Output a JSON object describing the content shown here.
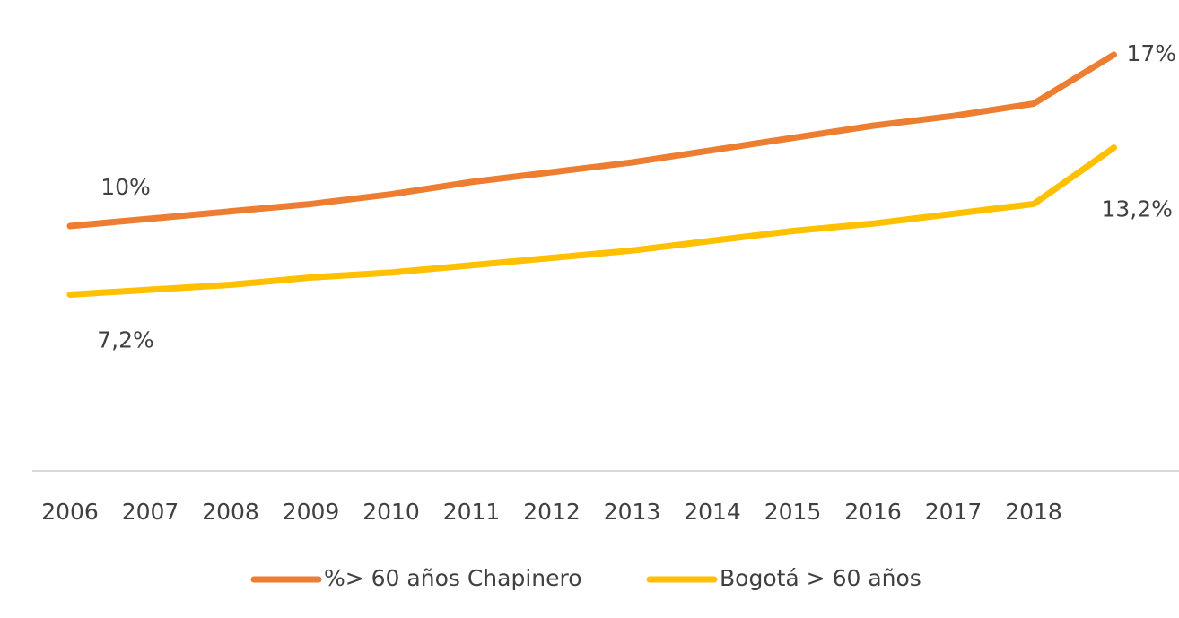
{
  "chart_data": {
    "type": "line",
    "categories": [
      "2006",
      "2007",
      "2008",
      "2009",
      "2010",
      "2011",
      "2012",
      "2013",
      "2014",
      "2015",
      "2016",
      "2017",
      "2018",
      null
    ],
    "series": [
      {
        "name": "%> 60 años Chapinero",
        "color": "#ed7d31",
        "values": [
          10,
          10.3,
          10.6,
          10.9,
          11.3,
          11.8,
          12.2,
          12.6,
          13.1,
          13.6,
          14.1,
          14.5,
          15.0,
          17
        ],
        "value_labels": [
          "10%",
          null,
          null,
          null,
          null,
          null,
          null,
          null,
          null,
          null,
          null,
          null,
          null,
          "17%"
        ]
      },
      {
        "name": "Bogotá > 60 años",
        "color": "#ffc000",
        "values": [
          7.2,
          7.4,
          7.6,
          7.9,
          8.1,
          8.4,
          8.7,
          9.0,
          9.4,
          9.8,
          10.1,
          10.5,
          10.9,
          13.2
        ],
        "value_labels": [
          "7,2%",
          null,
          null,
          null,
          null,
          null,
          null,
          null,
          null,
          null,
          null,
          null,
          null,
          "13,2%"
        ]
      }
    ],
    "ylim": [
      0,
      18.5
    ],
    "legend": "bottom"
  }
}
